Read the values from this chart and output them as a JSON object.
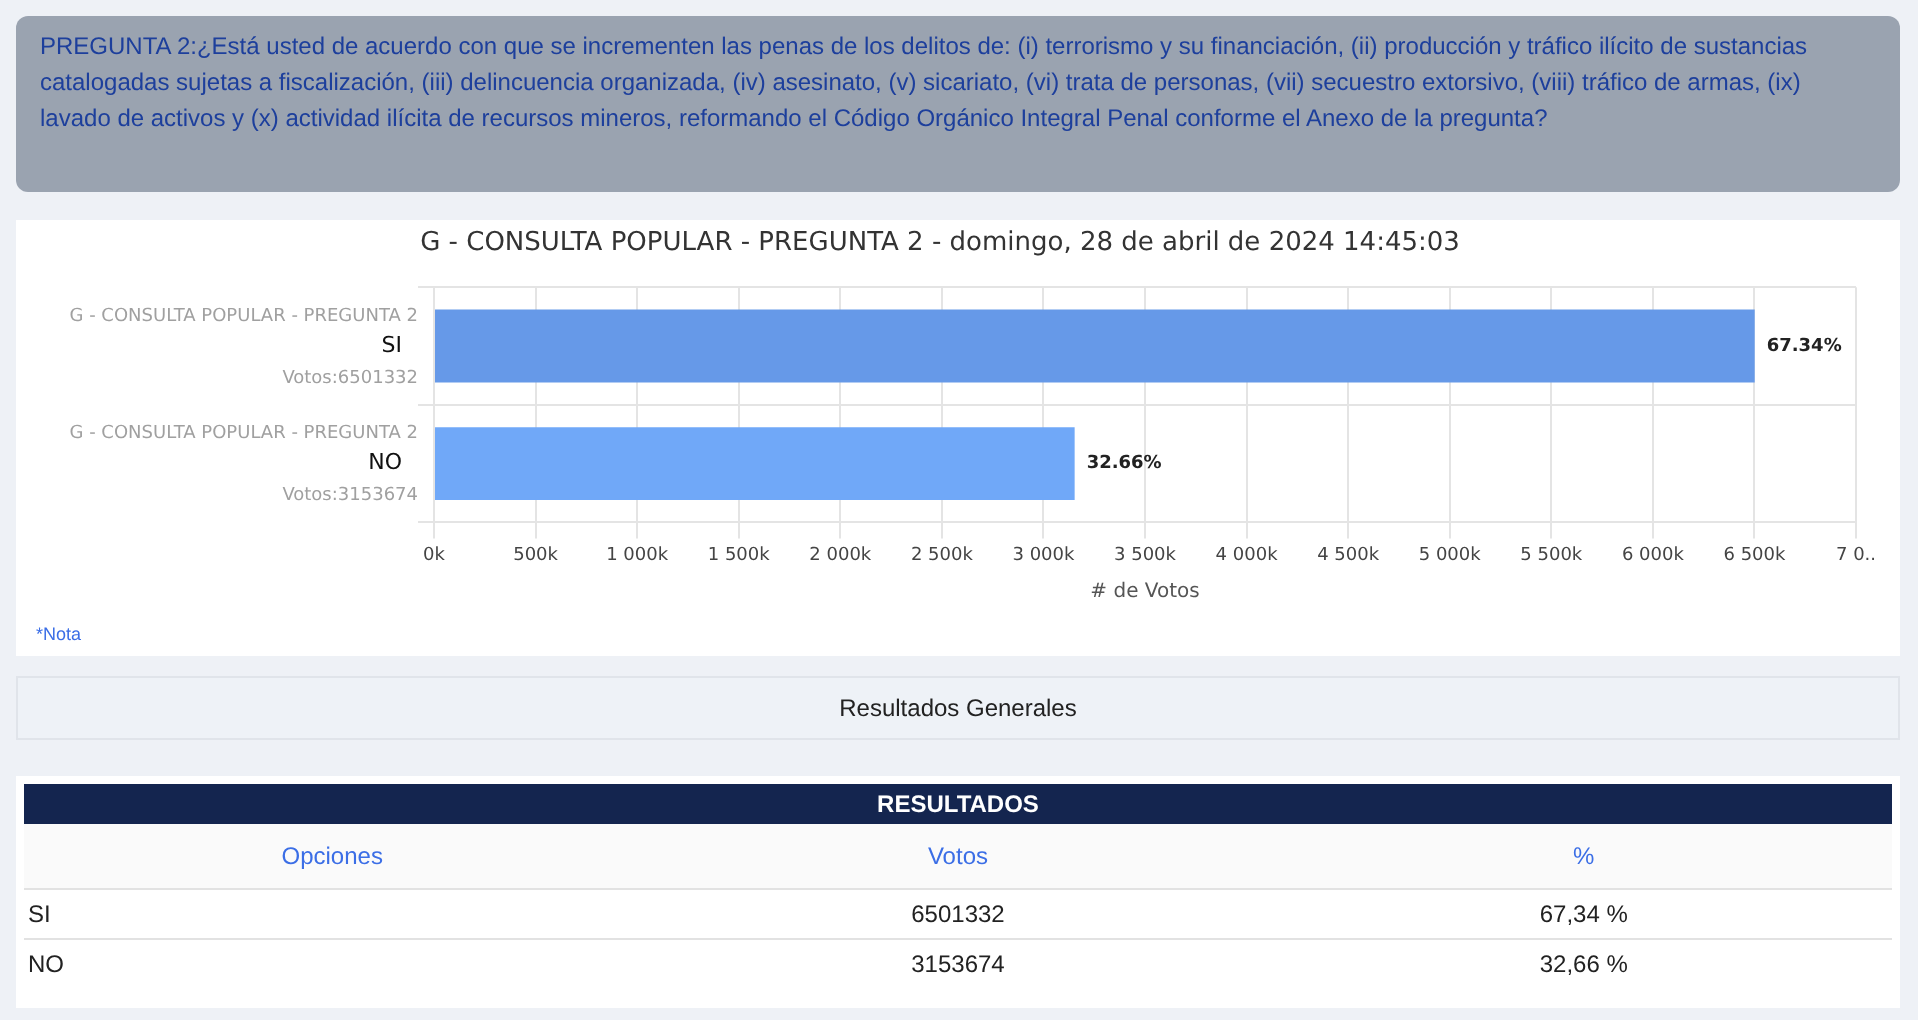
{
  "chart_data": {
    "type": "bar",
    "orientation": "horizontal",
    "title": "G - CONSULTA POPULAR - PREGUNTA 2 - domingo, 28 de abril de 2024 14:45:03",
    "categories": [
      "SI",
      "NO"
    ],
    "values": [
      6501332,
      3153674
    ],
    "colors": [
      "#6699e8",
      "#70a8f8"
    ],
    "xlabel": "# de Votos",
    "xlim": [
      0,
      7000000
    ],
    "xticks": [
      {
        "value": 0,
        "label": "0k"
      },
      {
        "value": 500000,
        "label": "500k"
      },
      {
        "value": 1000000,
        "label": "1 000k"
      },
      {
        "value": 1500000,
        "label": "1 500k"
      },
      {
        "value": 2000000,
        "label": "2 000k"
      },
      {
        "value": 2500000,
        "label": "2 500k"
      },
      {
        "value": 3000000,
        "label": "3 000k"
      },
      {
        "value": 3500000,
        "label": "3 500k"
      },
      {
        "value": 4000000,
        "label": "4 000k"
      },
      {
        "value": 4500000,
        "label": "4 500k"
      },
      {
        "value": 5000000,
        "label": "5 000k"
      },
      {
        "value": 5500000,
        "label": "5 500k"
      },
      {
        "value": 6000000,
        "label": "6 000k"
      },
      {
        "value": 6500000,
        "label": "6 500k"
      },
      {
        "value": 7000000,
        "label": "7 0.."
      }
    ],
    "grid": true,
    "annotations": [
      "PREGUNTA 2:¿Está usted de acuerdo con que se incrementen las penas de los delitos de: (i) terrorismo y su financiación, (ii) producción y tráfico ilícito de sustancias catalogadas sujetas a fiscalización, (iii) delincuencia organizada, (iv) asesinato, (v) sicariato, (vi) trata de personas, (vii) secuestro extorsivo, (viii) tráfico de armas, (ix) lavado de activos y (x) actividad ilícita de recursos mineros, reformando el Código Orgánico Integral Penal conforme el Anexo de la pregunta?",
      "*Nota",
      "Resultados Generales",
      "RESULTADOS",
      "Opciones",
      "Votos",
      "%",
      "67,34 %",
      "32,66 %",
      "6501332",
      "3153674",
      "G - CONSULTA POPULAR - PREGUNTA 2",
      "Votos:6501332",
      "G - CONSULTA POPULAR - PREGUNTA 2",
      "Votos:3153674",
      {
        "text": "67.34%",
        "x": 6501332,
        "y": "SI"
      },
      {
        "text": "32.66%",
        "x": 3153674,
        "y": "NO"
      }
    ]
  }
}
